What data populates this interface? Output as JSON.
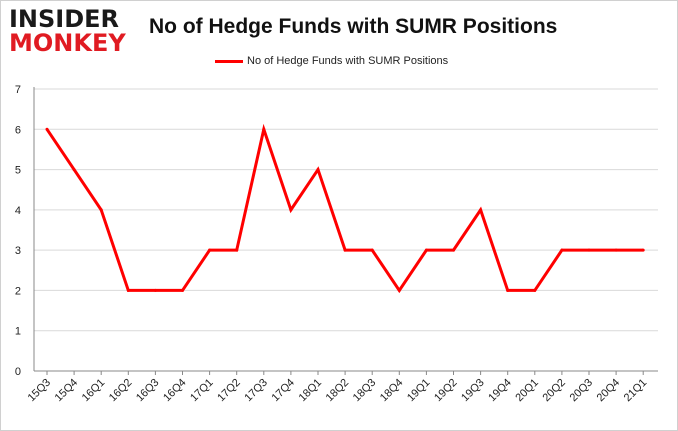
{
  "logo": {
    "line1": "INSIDER",
    "line2": "MONKEY"
  },
  "colors": {
    "series": "#ff0000",
    "grid": "#d9d9d9",
    "logo_accent": "#e01b22"
  },
  "chart_data": {
    "type": "line",
    "title": "No of Hedge Funds with SUMR Positions",
    "xlabel": "",
    "ylabel": "",
    "categories": [
      "15Q3",
      "15Q4",
      "16Q1",
      "16Q2",
      "16Q3",
      "16Q4",
      "17Q1",
      "17Q2",
      "17Q3",
      "17Q4",
      "18Q1",
      "18Q2",
      "18Q3",
      "18Q4",
      "19Q1",
      "19Q2",
      "19Q3",
      "19Q4",
      "20Q1",
      "20Q2",
      "20Q3",
      "20Q4",
      "21Q1"
    ],
    "series": [
      {
        "name": "No of Hedge Funds with SUMR Positions",
        "values": [
          6,
          5,
          4,
          2,
          2,
          2,
          3,
          3,
          6,
          4,
          5,
          3,
          3,
          2,
          3,
          3,
          4,
          2,
          2,
          3,
          3,
          3,
          3
        ]
      }
    ],
    "ylim": [
      0,
      7
    ],
    "yticks": [
      "0",
      "1",
      "2",
      "3",
      "4",
      "5",
      "6",
      "7"
    ],
    "grid": true,
    "legend": "top-center"
  }
}
